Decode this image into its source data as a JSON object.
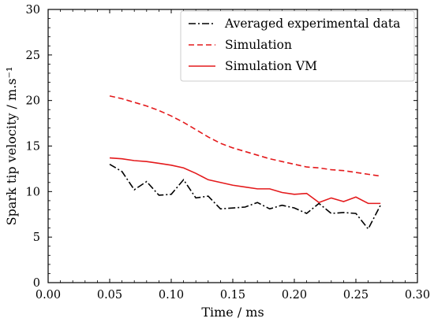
{
  "chart_data": {
    "type": "line",
    "title": "",
    "xlabel": "Time / ms",
    "ylabel": "Spark tip velocity / m.s⁻¹",
    "xlim": [
      0.0,
      0.3
    ],
    "ylim": [
      0,
      30
    ],
    "xticks": [
      "0.00",
      "0.05",
      "0.10",
      "0.15",
      "0.20",
      "0.25",
      "0.30"
    ],
    "yticks": [
      "0",
      "5",
      "10",
      "15",
      "20",
      "25",
      "30"
    ],
    "grid": false,
    "legend_position": "top-right",
    "x": [
      0.05,
      0.06,
      0.07,
      0.08,
      0.09,
      0.1,
      0.11,
      0.12,
      0.13,
      0.14,
      0.15,
      0.16,
      0.17,
      0.18,
      0.19,
      0.2,
      0.21,
      0.22,
      0.23,
      0.24,
      0.25,
      0.26,
      0.27
    ],
    "series": [
      {
        "name": "Averaged experimental data",
        "color": "#000000",
        "dash": "dashdot",
        "values": [
          13.0,
          12.2,
          10.2,
          11.1,
          9.6,
          9.7,
          11.3,
          9.3,
          9.5,
          8.1,
          8.2,
          8.3,
          8.8,
          8.1,
          8.5,
          8.2,
          7.6,
          8.7,
          7.6,
          7.7,
          7.6,
          5.9,
          8.5
        ]
      },
      {
        "name": "Simulation",
        "color": "#e41a1c",
        "dash": "dashed",
        "values": [
          20.5,
          20.2,
          19.8,
          19.4,
          18.9,
          18.3,
          17.6,
          16.8,
          16.0,
          15.3,
          14.8,
          14.4,
          14.0,
          13.6,
          13.3,
          13.0,
          12.7,
          12.6,
          12.4,
          12.3,
          12.1,
          11.9,
          11.7
        ]
      },
      {
        "name": "Simulation VM",
        "color": "#e41a1c",
        "dash": "solid",
        "values": [
          13.7,
          13.6,
          13.4,
          13.3,
          13.1,
          12.9,
          12.6,
          12.0,
          11.3,
          11.0,
          10.7,
          10.5,
          10.3,
          10.3,
          9.9,
          9.7,
          9.8,
          8.8,
          9.3,
          8.9,
          9.4,
          8.7,
          8.7
        ]
      }
    ]
  }
}
